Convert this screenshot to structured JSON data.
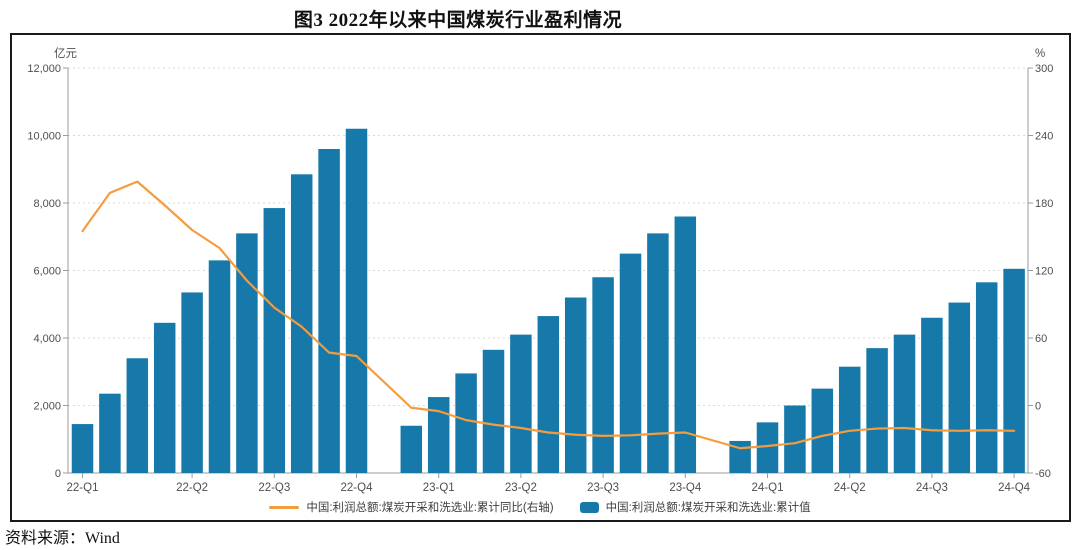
{
  "title": "图3  2022年以来中国煤炭行业盈利情况",
  "source": "资料来源：Wind",
  "colors": {
    "bar": "#1779a9",
    "line": "#f59c3e",
    "grid": "#d9d9d9",
    "axis": "#9b9b9b",
    "tick_text": "#4f4f4f",
    "panel_border": "#1a1a1a"
  },
  "chart_data": {
    "type": "bar+line",
    "title": "图3  2022年以来中国煤炭行业盈利情况",
    "grid": "horizontal-dashed",
    "legend_position": "bottom",
    "left_axis": {
      "unit": "亿元",
      "min": 0,
      "max": 12000,
      "ticks": [
        0,
        2000,
        4000,
        6000,
        8000,
        10000,
        12000
      ]
    },
    "right_axis": {
      "unit": "%",
      "min": -60,
      "max": 300,
      "ticks": [
        -60,
        0,
        60,
        120,
        180,
        240,
        300
      ]
    },
    "x": [
      "2022-02",
      "2022-03",
      "2022-04",
      "2022-05",
      "2022-06",
      "2022-07",
      "2022-08",
      "2022-09",
      "2022-10",
      "2022-11",
      "2022-12",
      "2023-01",
      "2023-02",
      "2023-03",
      "2023-04",
      "2023-05",
      "2023-06",
      "2023-07",
      "2023-08",
      "2023-09",
      "2023-10",
      "2023-11",
      "2023-12",
      "2024-01",
      "2024-02",
      "2024-03",
      "2024-04",
      "2024-05",
      "2024-06",
      "2024-07",
      "2024-08",
      "2024-09",
      "2024-10",
      "2024-11",
      "2024-12"
    ],
    "x_tick_labels": [
      {
        "slot": 0,
        "label": "22-Q1"
      },
      {
        "slot": 4,
        "label": "22-Q2"
      },
      {
        "slot": 7,
        "label": "22-Q3"
      },
      {
        "slot": 10,
        "label": "22-Q4"
      },
      {
        "slot": 13,
        "label": "23-Q1"
      },
      {
        "slot": 16,
        "label": "23-Q2"
      },
      {
        "slot": 19,
        "label": "23-Q3"
      },
      {
        "slot": 22,
        "label": "23-Q4"
      },
      {
        "slot": 25,
        "label": "24-Q1"
      },
      {
        "slot": 28,
        "label": "24-Q2"
      },
      {
        "slot": 31,
        "label": "24-Q3"
      },
      {
        "slot": 34,
        "label": "24-Q4"
      }
    ],
    "series": [
      {
        "name": "中国:利润总额:煤炭开采和洗选业:累计值",
        "type": "bar",
        "axis": "left",
        "color": "#1779a9",
        "values": [
          1450,
          2350,
          3400,
          4450,
          5350,
          6300,
          7100,
          7850,
          8850,
          9600,
          10200,
          null,
          1400,
          2250,
          2950,
          3650,
          4100,
          4650,
          5200,
          5800,
          6500,
          7100,
          7600,
          null,
          950,
          1500,
          2000,
          2500,
          3150,
          3700,
          4100,
          4600,
          5050,
          5650,
          6050
        ]
      },
      {
        "name": "中国:利润总额:煤炭开采和洗选业:累计同比(右轴)",
        "type": "line",
        "axis": "right",
        "color": "#f59c3e",
        "values": [
          155,
          189,
          199,
          178,
          156,
          140,
          111,
          87,
          70,
          47,
          44,
          null,
          -2,
          -5,
          -13,
          -17,
          -20,
          -24,
          -26,
          -27,
          -26.5,
          -25,
          -24,
          null,
          -38,
          -36,
          -33.5,
          -27,
          -22.5,
          -20.5,
          -20,
          -22,
          -22.5,
          -22,
          -22.5
        ]
      }
    ]
  },
  "legend": {
    "line_label": "中国:利润总额:煤炭开采和洗选业:累计同比(右轴)",
    "bar_label": "中国:利润总额:煤炭开采和洗选业:累计值"
  }
}
